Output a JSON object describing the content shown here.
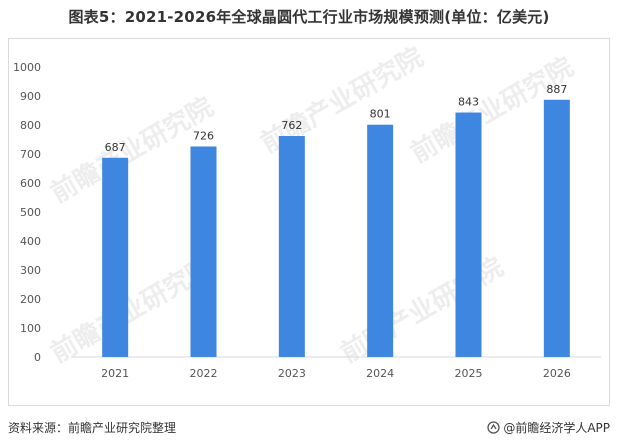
{
  "header": {
    "title": "图表5：2021-2026年全球晶圆代工行业市场规模预测(单位：亿美元)"
  },
  "chart_data": {
    "type": "bar",
    "categories": [
      "2021",
      "2022",
      "2023",
      "2024",
      "2025",
      "2026"
    ],
    "series": [
      {
        "values": [
          687,
          726,
          762,
          801,
          843,
          887
        ],
        "color": "#3e86e0"
      }
    ],
    "ylim": [
      0,
      1000
    ],
    "yticks": [
      0,
      100,
      200,
      300,
      400,
      500,
      600,
      700,
      800,
      900,
      1000
    ],
    "grid": false,
    "title": "",
    "xlabel": "",
    "ylabel": ""
  },
  "footer": {
    "source": "资料来源：前瞻产业研究院整理",
    "brand": "@前瞻经济学人APP"
  },
  "watermark": {
    "text": "前瞻产业研究院"
  }
}
